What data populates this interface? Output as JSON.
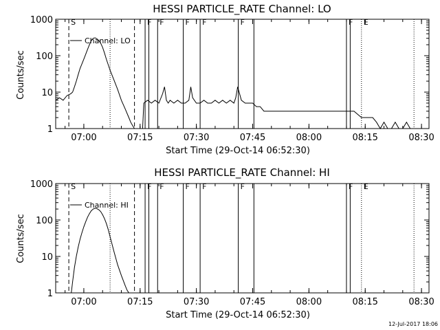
{
  "footer_timestamp": "12-Jul-2017 18:06",
  "chart_data": [
    {
      "type": "line",
      "title": "HESSI PARTICLE_RATE Channel: LO",
      "xlabel": "Start Time (29-Oct-14 06:52:30)",
      "ylabel": "Counts/sec",
      "y_scale": "log",
      "ylim": [
        1,
        1000
      ],
      "xlim": [
        "06:52:30",
        "08:32:00"
      ],
      "x_ticks": [
        "07:00",
        "07:15",
        "07:30",
        "07:45",
        "08:00",
        "08:15",
        "08:30"
      ],
      "y_ticks": [
        "1",
        "10",
        "100",
        "1000"
      ],
      "legend": "Channel: LO",
      "flag_lines": [
        {
          "time": "06:56:00",
          "style": "dashed",
          "label": "S"
        },
        {
          "time": "07:07:00",
          "style": "dotted",
          "label": ""
        },
        {
          "time": "07:13:30",
          "style": "dashed",
          "label": ""
        },
        {
          "time": "07:16:20",
          "style": "solid",
          "label": "F"
        },
        {
          "time": "07:17:20",
          "style": "solid",
          "label": ""
        },
        {
          "time": "07:19:40",
          "style": "solid",
          "label": "F"
        },
        {
          "time": "07:26:30",
          "style": "solid",
          "label": "F"
        },
        {
          "time": "07:31:00",
          "style": "solid",
          "label": "F"
        },
        {
          "time": "07:41:10",
          "style": "solid",
          "label": "F"
        },
        {
          "time": "07:45:20",
          "style": "solid",
          "label": ""
        },
        {
          "time": "08:10:00",
          "style": "solid",
          "label": "F"
        },
        {
          "time": "08:11:00",
          "style": "solid",
          "label": ""
        },
        {
          "time": "08:14:00",
          "style": "dotted",
          "label": "E"
        },
        {
          "time": "08:28:00",
          "style": "dotted",
          "label": ""
        }
      ],
      "series": [
        {
          "name": "Channel: LO",
          "x": [
            "06:52:30",
            "06:53:30",
            "06:54:30",
            "06:55:30",
            "06:56:30",
            "06:57:00",
            "06:57:30",
            "06:58:00",
            "06:58:30",
            "06:59:00",
            "06:59:30",
            "07:00:00",
            "07:00:30",
            "07:01:00",
            "07:01:30",
            "07:02:00",
            "07:02:30",
            "07:03:00",
            "07:03:30",
            "07:04:00",
            "07:04:30",
            "07:05:00",
            "07:05:30",
            "07:06:00",
            "07:07:00",
            "07:08:00",
            "07:09:00",
            "07:10:00",
            "07:11:00",
            "07:12:00",
            "07:12:30",
            "07:13:00",
            "07:13:30",
            "07:14:00",
            "07:14:30",
            "07:15:00",
            "07:15:40",
            "07:16:00",
            "07:17:00",
            "07:18:00",
            "07:19:00",
            "07:20:00",
            "07:21:00",
            "07:21:30",
            "07:22:00",
            "07:22:30",
            "07:23:00",
            "07:24:00",
            "07:25:00",
            "07:26:00",
            "07:27:00",
            "07:28:00",
            "07:28:30",
            "07:29:00",
            "07:30:00",
            "07:31:00",
            "07:32:00",
            "07:33:00",
            "07:34:00",
            "07:35:00",
            "07:36:00",
            "07:37:00",
            "07:38:00",
            "07:39:00",
            "07:40:00",
            "07:40:30",
            "07:41:00",
            "07:42:00",
            "07:43:00",
            "07:44:00",
            "07:45:00",
            "07:46:00",
            "07:47:00",
            "07:48:00",
            "07:50:00",
            "07:52:00",
            "07:54:00",
            "07:56:00",
            "07:58:00",
            "08:00:00",
            "08:02:00",
            "08:04:00",
            "08:06:00",
            "08:08:00",
            "08:10:00",
            "08:12:00",
            "08:14:00",
            "08:16:00",
            "08:17:00",
            "08:18:00",
            "08:19:00",
            "08:20:00",
            "08:21:00",
            "08:22:00",
            "08:23:00",
            "08:24:00",
            "08:25:00",
            "08:26:00",
            "08:27:00",
            "08:28:00"
          ],
          "y": [
            6,
            7,
            6,
            8,
            9,
            10,
            14,
            20,
            30,
            45,
            60,
            80,
            110,
            150,
            200,
            260,
            300,
            310,
            290,
            260,
            220,
            170,
            120,
            80,
            40,
            22,
            12,
            6,
            3.5,
            2,
            1.5,
            1.2,
            1,
            1,
            1,
            1,
            1,
            5,
            6,
            5,
            6,
            5,
            9,
            14,
            6,
            5,
            6,
            5,
            6,
            5,
            5,
            6,
            14,
            7,
            5,
            5,
            6,
            5,
            5,
            6,
            5,
            6,
            5,
            6,
            5,
            7,
            14,
            6,
            5,
            5,
            5,
            4,
            4,
            3,
            3,
            3,
            3,
            3,
            3,
            3,
            3,
            3,
            3,
            3,
            3,
            3,
            2,
            2,
            2,
            1.5,
            1,
            1.5,
            1,
            1,
            1.5,
            1,
            1,
            1.5,
            1,
            1
          ]
        }
      ]
    },
    {
      "type": "line",
      "title": "HESSI PARTICLE_RATE Channel: HI",
      "xlabel": "Start Time (29-Oct-14 06:52:30)",
      "ylabel": "Counts/sec",
      "y_scale": "log",
      "ylim": [
        1,
        1000
      ],
      "xlim": [
        "06:52:30",
        "08:32:00"
      ],
      "x_ticks": [
        "07:00",
        "07:15",
        "07:30",
        "07:45",
        "08:00",
        "08:15",
        "08:30"
      ],
      "y_ticks": [
        "1",
        "10",
        "100",
        "1000"
      ],
      "legend": "Channel: HI",
      "flag_lines": [
        {
          "time": "06:56:00",
          "style": "dashed",
          "label": "S"
        },
        {
          "time": "07:07:00",
          "style": "dotted",
          "label": ""
        },
        {
          "time": "07:13:30",
          "style": "dashed",
          "label": ""
        },
        {
          "time": "07:16:20",
          "style": "solid",
          "label": "F"
        },
        {
          "time": "07:17:20",
          "style": "solid",
          "label": ""
        },
        {
          "time": "07:19:40",
          "style": "solid",
          "label": "F"
        },
        {
          "time": "07:26:30",
          "style": "solid",
          "label": "F"
        },
        {
          "time": "07:31:00",
          "style": "solid",
          "label": "F"
        },
        {
          "time": "07:41:10",
          "style": "solid",
          "label": "F"
        },
        {
          "time": "07:45:20",
          "style": "solid",
          "label": ""
        },
        {
          "time": "08:10:00",
          "style": "solid",
          "label": "F"
        },
        {
          "time": "08:11:00",
          "style": "solid",
          "label": ""
        },
        {
          "time": "08:14:00",
          "style": "dotted",
          "label": "E"
        },
        {
          "time": "08:28:00",
          "style": "dotted",
          "label": ""
        }
      ],
      "series": [
        {
          "name": "Channel: HI",
          "x": [
            "06:56:40",
            "06:57:00",
            "06:57:30",
            "06:58:00",
            "06:58:30",
            "06:59:00",
            "06:59:30",
            "07:00:00",
            "07:00:30",
            "07:01:00",
            "07:01:30",
            "07:02:00",
            "07:02:30",
            "07:03:00",
            "07:03:30",
            "07:04:00",
            "07:04:30",
            "07:05:00",
            "07:05:30",
            "07:06:00",
            "07:06:30",
            "07:07:00",
            "07:07:30",
            "07:08:00",
            "07:09:00",
            "07:10:00",
            "07:11:00",
            "07:11:30",
            "07:12:00"
          ],
          "y": [
            1,
            2,
            5,
            10,
            18,
            30,
            45,
            65,
            90,
            120,
            150,
            180,
            200,
            210,
            205,
            190,
            170,
            140,
            110,
            80,
            55,
            35,
            22,
            14,
            6,
            3,
            1.6,
            1.2,
            1
          ]
        }
      ]
    }
  ]
}
